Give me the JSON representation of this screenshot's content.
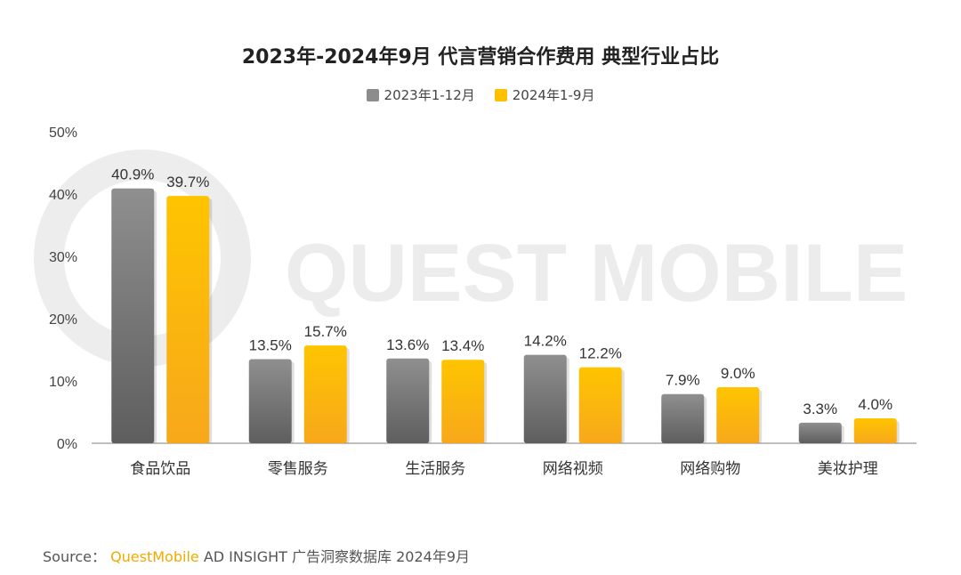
{
  "chart_data": {
    "type": "bar",
    "title": "2023年-2024年9月 代言营销合作费用 典型行业占比",
    "categories": [
      "食品饮品",
      "零售服务",
      "生活服务",
      "网络视频",
      "网络购物",
      "美妆护理"
    ],
    "series": [
      {
        "name": "2023年1-12月",
        "values": [
          40.9,
          13.5,
          13.6,
          14.2,
          7.9,
          3.3
        ],
        "labels": [
          "40.9%",
          "13.5%",
          "13.6%",
          "14.2%",
          "7.9%",
          "3.3%"
        ],
        "color": "#8c8c8c"
      },
      {
        "name": "2024年1-9月",
        "values": [
          39.7,
          15.7,
          13.4,
          12.2,
          9.0,
          4.0
        ],
        "labels": [
          "39.7%",
          "15.7%",
          "13.4%",
          "12.2%",
          "9.0%",
          "4.0%"
        ],
        "color": "#ffc000"
      }
    ],
    "ylim": [
      0,
      50
    ],
    "yticks": [
      "0%",
      "10%",
      "20%",
      "30%",
      "40%",
      "50%"
    ],
    "legend_position": "top-center",
    "grid": false
  },
  "watermark": "QUEST MOBILE",
  "footer": {
    "source_label": "Source：",
    "brand": "QuestMobile",
    "text": "AD INSIGHT 广告洞察数据库 2024年9月"
  }
}
